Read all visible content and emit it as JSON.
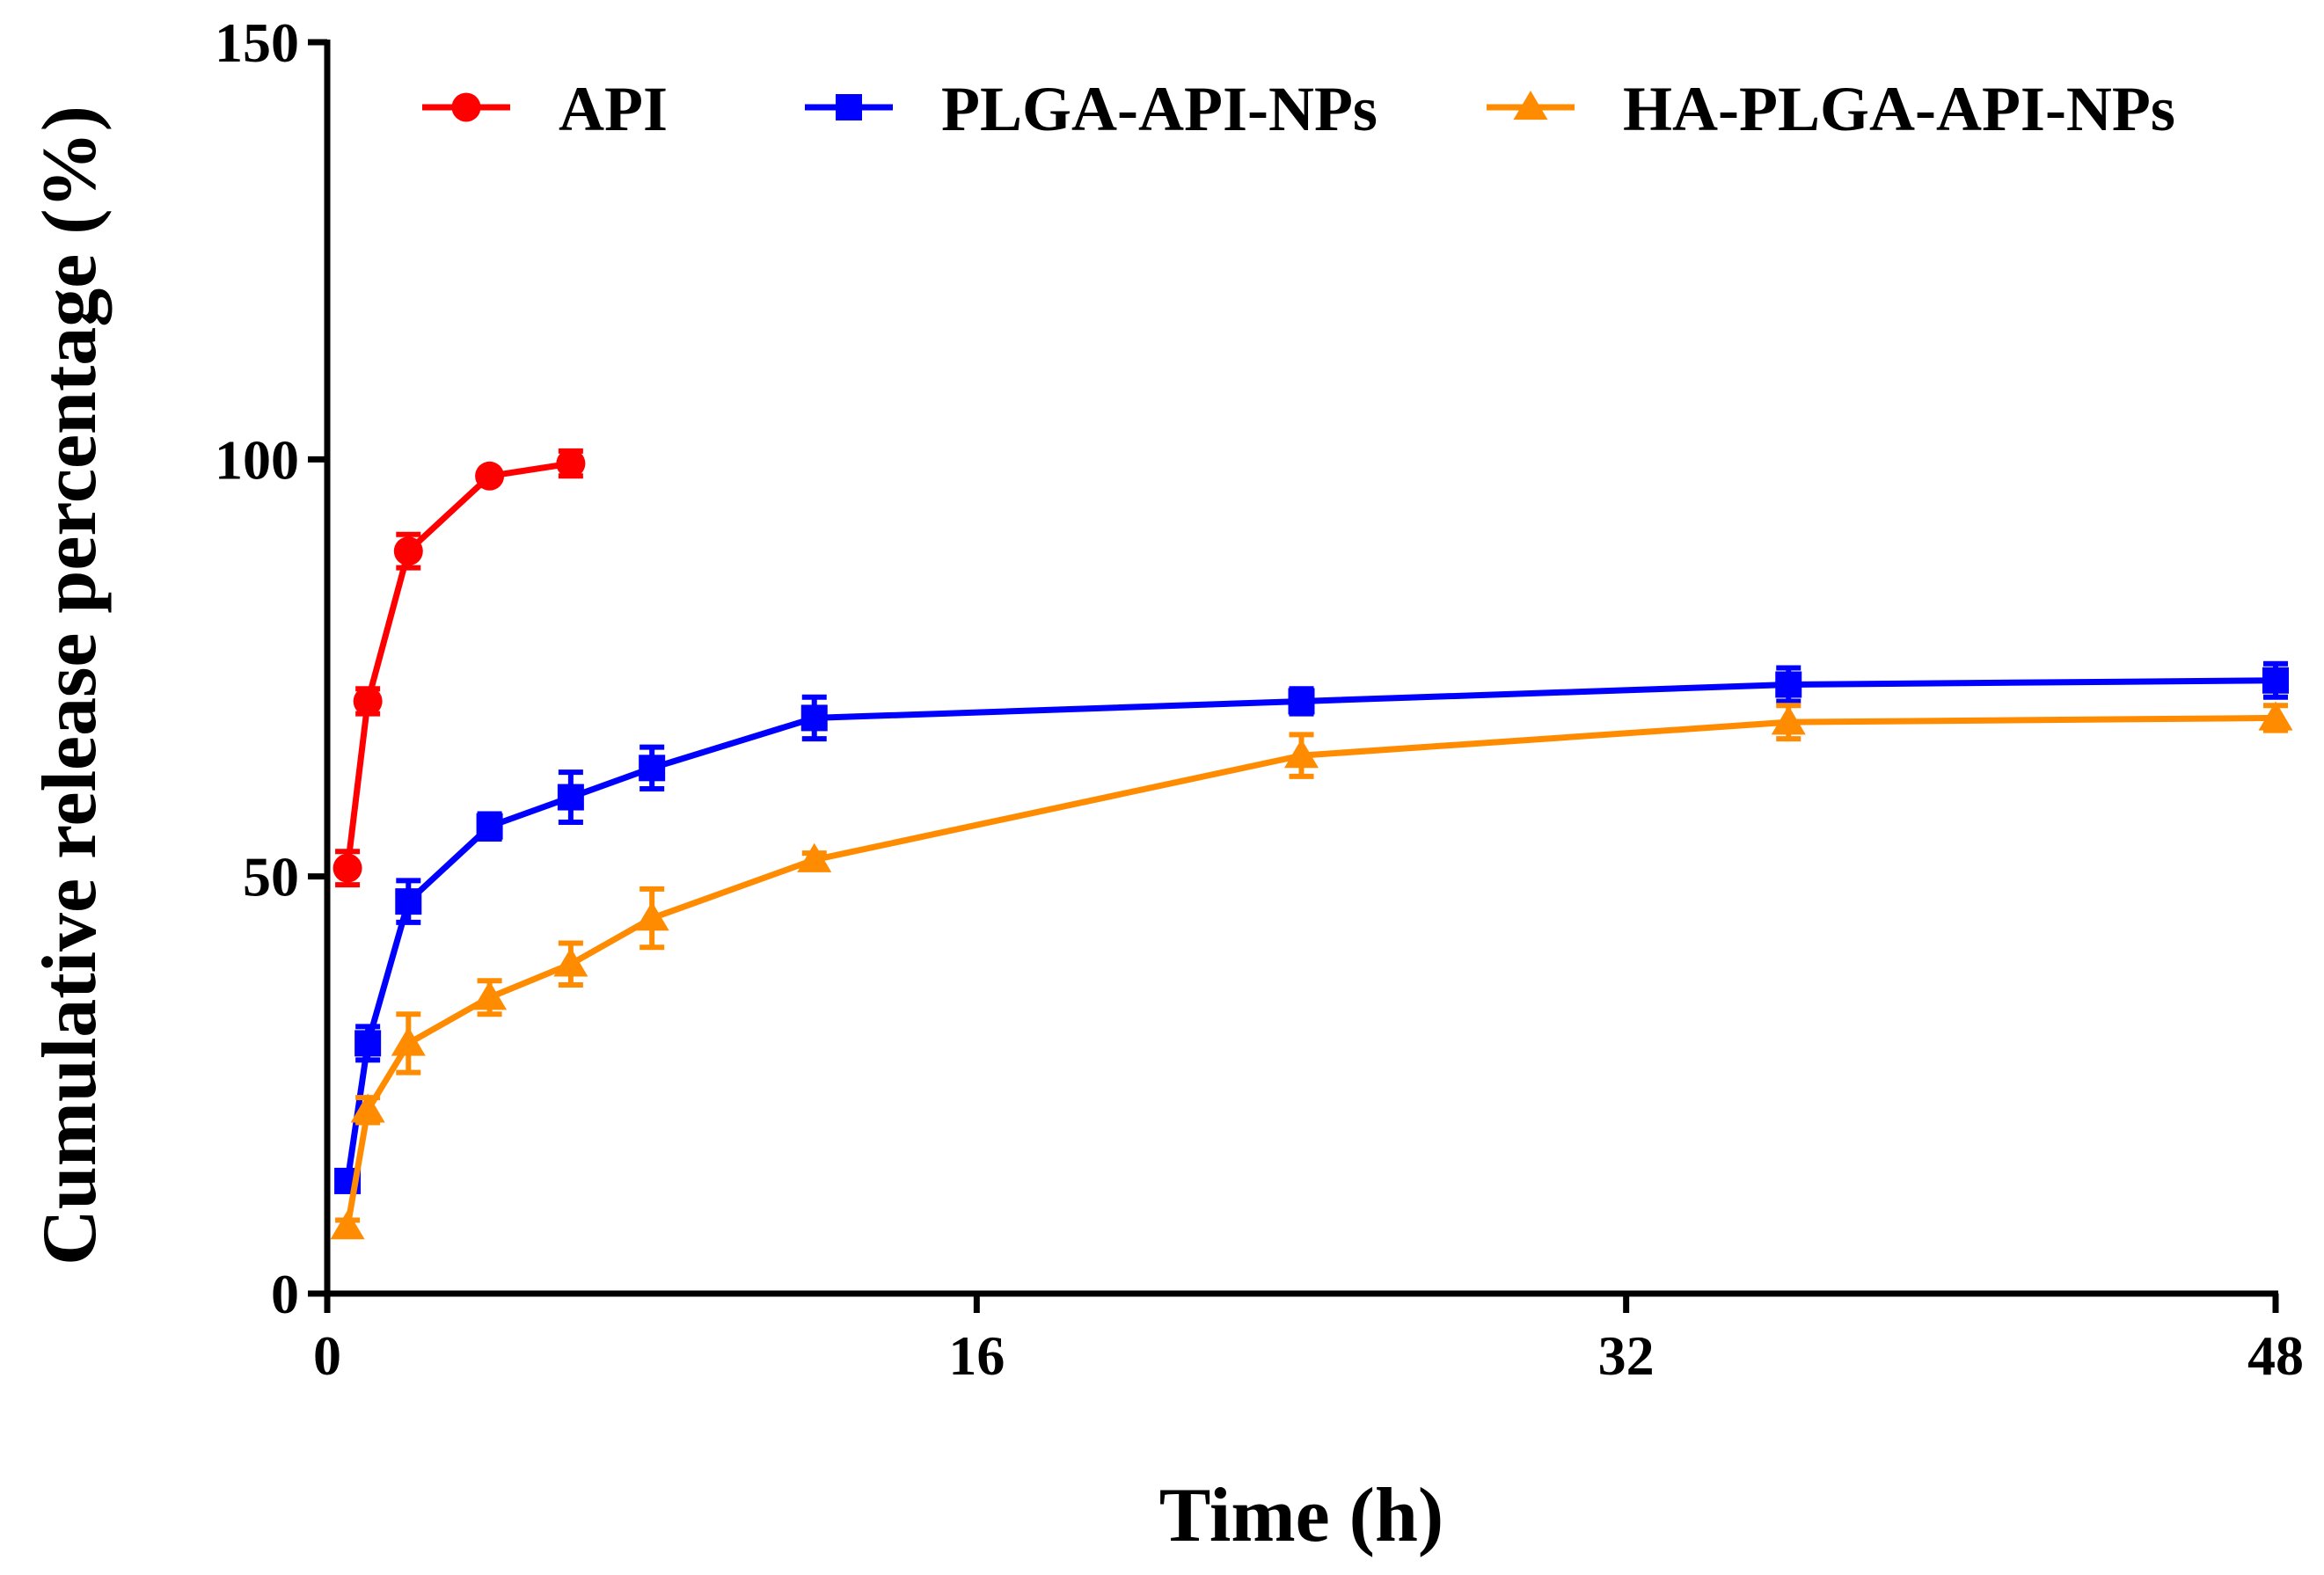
{
  "chart_data": {
    "type": "line",
    "title": "",
    "xlabel": "Time (h)",
    "ylabel": "Cumulative release percentage (%)",
    "xlim": [
      0,
      48
    ],
    "ylim": [
      0,
      150
    ],
    "xticks": [
      0,
      16,
      32,
      48
    ],
    "yticks": [
      0,
      50,
      100,
      150
    ],
    "grid": false,
    "legend_position": "top",
    "series": [
      {
        "name": "API",
        "color": "#ff0000",
        "marker": "circle",
        "x": [
          0.5,
          1,
          2,
          4,
          6
        ],
        "y": [
          51,
          71,
          89,
          98,
          99.5
        ],
        "err": [
          2,
          1.5,
          2,
          0.5,
          1.5
        ]
      },
      {
        "name": "PLGA-API-NPs",
        "color": "#0000ff",
        "marker": "square",
        "x": [
          0.5,
          1,
          2,
          4,
          6,
          8,
          12,
          24,
          36,
          48
        ],
        "y": [
          13.5,
          30,
          47,
          56,
          59.5,
          63,
          69,
          71,
          73,
          73.5
        ],
        "err": [
          0.8,
          2,
          2.5,
          1.5,
          3,
          2.5,
          2.5,
          1.5,
          2,
          2
        ]
      },
      {
        "name": "HA-PLGA-API-NPs",
        "color": "#ff8c00",
        "marker": "triangle",
        "x": [
          0.5,
          1,
          2,
          4,
          6,
          8,
          12,
          24,
          36,
          48
        ],
        "y": [
          8,
          22,
          30,
          35.5,
          39.5,
          45,
          52,
          64.5,
          68.5,
          69
        ],
        "err": [
          0.8,
          1.5,
          3.5,
          2,
          2.5,
          3.5,
          0.8,
          2.5,
          2,
          1.5
        ]
      }
    ]
  }
}
